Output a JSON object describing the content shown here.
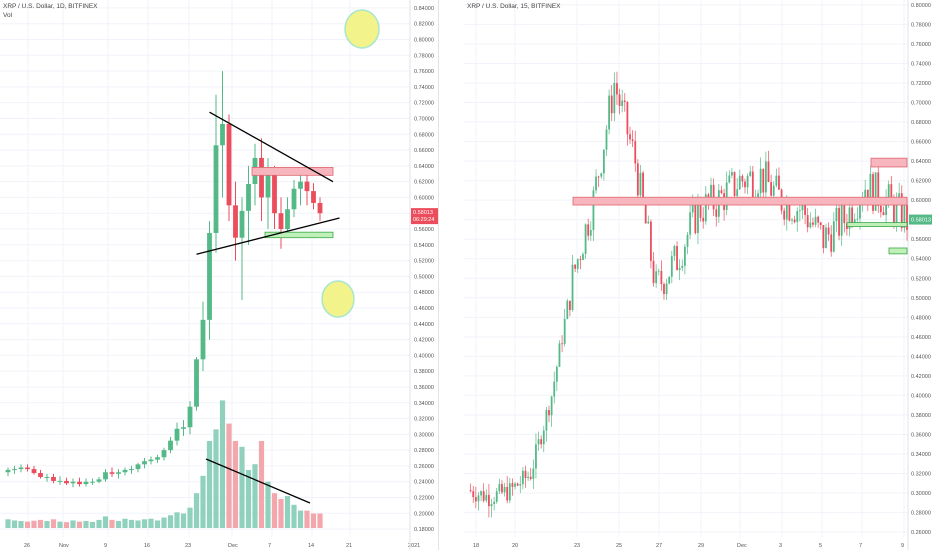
{
  "left_chart": {
    "title": "XRP / U.S. Dollar, 1D, BITFINEX",
    "volume_label": "Vol",
    "currency": "USD",
    "current_price": "0.58013",
    "countdown": "06:29:24",
    "y_ticks": [
      "0.84000",
      "0.82000",
      "0.80000",
      "0.78000",
      "0.76000",
      "0.74000",
      "0.72000",
      "0.70000",
      "0.68000",
      "0.66000",
      "0.64000",
      "0.62000",
      "0.60000",
      "0.58000",
      "0.56000",
      "0.54000",
      "0.52000",
      "0.50000",
      "0.48000",
      "0.46000",
      "0.44000",
      "0.42000",
      "0.40000",
      "0.38000",
      "0.36000",
      "0.34000",
      "0.32000",
      "0.30000",
      "0.28000",
      "0.26000",
      "0.24000",
      "0.22000",
      "0.20000",
      "0.18000"
    ],
    "x_ticks": [
      "26",
      "Nov",
      "9",
      "16",
      "23",
      "Dec",
      "7",
      "14",
      "21",
      "2021"
    ]
  },
  "right_chart": {
    "title": "XRP / U.S. Dollar, 15, BITFINEX",
    "currency": "USD",
    "current_price": "0.58013",
    "y_ticks": [
      "0.80000",
      "0.78000",
      "0.76000",
      "0.74000",
      "0.72000",
      "0.70000",
      "0.68000",
      "0.66000",
      "0.64000",
      "0.62000",
      "0.60000",
      "0.58000",
      "0.56000",
      "0.54000",
      "0.52000",
      "0.50000",
      "0.48000",
      "0.46000",
      "0.44000",
      "0.42000",
      "0.40000",
      "0.38000",
      "0.36000",
      "0.34000",
      "0.32000",
      "0.30000",
      "0.28000",
      "0.26000"
    ],
    "x_ticks": [
      "18",
      "20",
      "23",
      "25",
      "27",
      "29",
      "Dec",
      "3",
      "5",
      "7",
      "9"
    ]
  },
  "colors": {
    "up": "#53b987",
    "down": "#eb4d5c",
    "vol_up": "#8fd1bd",
    "vol_down": "#f4a6ad",
    "zone_red": "#f7b6bd",
    "zone_green": "#bff0b8",
    "highlight_fill": "#f2f38a",
    "highlight_stroke": "#a8e6cf"
  },
  "chart_data": [
    {
      "type": "candlestick",
      "title": "XRP / U.S. Dollar, 1D, BITFINEX",
      "ylabel": "USD",
      "ylim": [
        0.17,
        0.85
      ],
      "x": [
        "Oct 22",
        "Oct 23",
        "Oct 24",
        "Oct 25",
        "Oct 26",
        "Oct 27",
        "Oct 28",
        "Oct 29",
        "Oct 30",
        "Oct 31",
        "Nov 1",
        "Nov 2",
        "Nov 3",
        "Nov 4",
        "Nov 5",
        "Nov 6",
        "Nov 7",
        "Nov 8",
        "Nov 9",
        "Nov 10",
        "Nov 11",
        "Nov 12",
        "Nov 13",
        "Nov 14",
        "Nov 15",
        "Nov 16",
        "Nov 17",
        "Nov 18",
        "Nov 19",
        "Nov 20",
        "Nov 21",
        "Nov 22",
        "Nov 23",
        "Nov 24",
        "Nov 25",
        "Nov 26",
        "Nov 27",
        "Nov 28",
        "Nov 29",
        "Nov 30",
        "Dec 1",
        "Dec 2",
        "Dec 3",
        "Dec 4",
        "Dec 5",
        "Dec 6",
        "Dec 7",
        "Dec 8",
        "Dec 9"
      ],
      "open": [
        0.252,
        0.255,
        0.256,
        0.258,
        0.256,
        0.251,
        0.246,
        0.246,
        0.241,
        0.241,
        0.238,
        0.24,
        0.237,
        0.24,
        0.24,
        0.243,
        0.252,
        0.25,
        0.252,
        0.255,
        0.256,
        0.262,
        0.266,
        0.268,
        0.271,
        0.28,
        0.292,
        0.307,
        0.309,
        0.335,
        0.395,
        0.445,
        0.555,
        0.666,
        0.693,
        0.59,
        0.549,
        0.583,
        0.617,
        0.65,
        0.6,
        0.63,
        0.58,
        0.56,
        0.585,
        0.611,
        0.62,
        0.608,
        0.593
      ],
      "high": [
        0.258,
        0.26,
        0.262,
        0.262,
        0.26,
        0.255,
        0.25,
        0.25,
        0.247,
        0.245,
        0.244,
        0.245,
        0.244,
        0.244,
        0.246,
        0.256,
        0.258,
        0.256,
        0.258,
        0.26,
        0.264,
        0.27,
        0.272,
        0.274,
        0.283,
        0.297,
        0.315,
        0.318,
        0.342,
        0.398,
        0.468,
        0.57,
        0.73,
        0.76,
        0.705,
        0.62,
        0.6,
        0.64,
        0.668,
        0.675,
        0.65,
        0.64,
        0.6,
        0.6,
        0.622,
        0.628,
        0.63,
        0.618,
        0.6
      ],
      "low": [
        0.247,
        0.25,
        0.252,
        0.253,
        0.249,
        0.244,
        0.24,
        0.238,
        0.236,
        0.236,
        0.233,
        0.234,
        0.234,
        0.236,
        0.238,
        0.24,
        0.246,
        0.244,
        0.248,
        0.25,
        0.252,
        0.257,
        0.262,
        0.264,
        0.267,
        0.276,
        0.286,
        0.298,
        0.3,
        0.33,
        0.38,
        0.42,
        0.53,
        0.6,
        0.57,
        0.52,
        0.47,
        0.54,
        0.59,
        0.57,
        0.56,
        0.56,
        0.535,
        0.55,
        0.575,
        0.59,
        0.59,
        0.585,
        0.57
      ],
      "close": [
        0.255,
        0.256,
        0.258,
        0.256,
        0.251,
        0.246,
        0.246,
        0.241,
        0.241,
        0.238,
        0.24,
        0.237,
        0.24,
        0.24,
        0.243,
        0.252,
        0.25,
        0.252,
        0.255,
        0.256,
        0.262,
        0.266,
        0.268,
        0.271,
        0.28,
        0.292,
        0.307,
        0.309,
        0.335,
        0.395,
        0.445,
        0.555,
        0.666,
        0.693,
        0.59,
        0.549,
        0.583,
        0.617,
        0.65,
        0.6,
        0.63,
        0.58,
        0.56,
        0.585,
        0.611,
        0.62,
        0.608,
        0.593,
        0.58
      ],
      "volume": [
        3,
        2.6,
        2.4,
        2.2,
        2.5,
        2.8,
        2.4,
        3.0,
        2.2,
        2.0,
        2.6,
        2.2,
        2.4,
        2.1,
        2.8,
        4.0,
        2.8,
        2.4,
        3.2,
        2.8,
        2.6,
        3.0,
        3.2,
        2.6,
        3.6,
        4.4,
        5.4,
        5.0,
        7.0,
        12.0,
        18.0,
        30.0,
        34.0,
        44.0,
        36.0,
        30.0,
        28.0,
        20.0,
        22.0,
        30.0,
        16.0,
        12.0,
        10.0,
        11.0,
        8.0,
        6.0,
        6.0,
        5.0,
        5.0
      ],
      "zones": [
        {
          "label": "resistance",
          "from": "Nov 29",
          "to": "Dec 11",
          "low": 0.628,
          "high": 0.638
        },
        {
          "label": "support",
          "from": "Dec 1",
          "to": "Dec 11",
          "low": 0.549,
          "high": 0.556
        }
      ],
      "trendlines": [
        {
          "from": [
            "Nov 22",
            0.708
          ],
          "to": [
            "Dec 11",
            0.62
          ]
        },
        {
          "from": [
            "Nov 20",
            0.528
          ],
          "to": [
            "Dec 12",
            0.574
          ]
        }
      ]
    },
    {
      "type": "line",
      "title": "XRP / U.S. Dollar, 15, BITFINEX",
      "ylabel": "USD",
      "ylim": [
        0.255,
        0.805
      ],
      "x": [
        "18",
        "19",
        "20",
        "21",
        "22",
        "23",
        "24",
        "25",
        "26",
        "27",
        "28",
        "29",
        "30",
        "Dec",
        "2",
        "3",
        "4",
        "5",
        "6",
        "7",
        "8",
        "9"
      ],
      "values": [
        0.303,
        0.296,
        0.302,
        0.32,
        0.4,
        0.52,
        0.6,
        0.72,
        0.64,
        0.51,
        0.54,
        0.59,
        0.6,
        0.62,
        0.625,
        0.6,
        0.59,
        0.56,
        0.58,
        0.615,
        0.6,
        0.58
      ],
      "zones": [
        {
          "label": "resistance",
          "from": "22.2",
          "to": "9.2",
          "low": 0.595,
          "high": 0.603
        },
        {
          "label": "resistance_upper",
          "from": "8.4",
          "to": "9.2",
          "low": 0.634,
          "high": 0.643
        },
        {
          "label": "support",
          "from": "7.5",
          "to": "9.2",
          "low": 0.573,
          "high": 0.577
        },
        {
          "label": "support_lower",
          "from": "8.8",
          "to": "9.2",
          "low": 0.545,
          "high": 0.551
        }
      ]
    }
  ]
}
